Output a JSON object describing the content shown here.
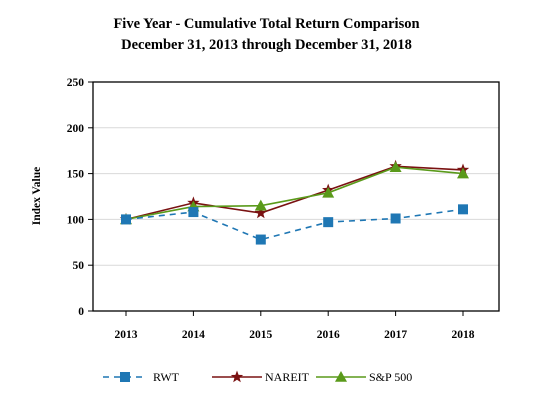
{
  "chart_data": {
    "type": "line",
    "title": "Five Year - Cumulative Total Return Comparison",
    "subtitle": "December 31, 2013 through December 31, 2018",
    "xlabel": "",
    "ylabel": "Index Value",
    "ylim": [
      0,
      250
    ],
    "y_ticks": [
      0,
      50,
      100,
      150,
      200,
      250
    ],
    "categories": [
      "2013",
      "2014",
      "2015",
      "2016",
      "2017",
      "2018"
    ],
    "grid": "horizontal",
    "legend_position": "bottom",
    "series": [
      {
        "name": "RWT",
        "values": [
          100,
          108,
          78,
          97,
          101,
          111
        ],
        "color": "#1f77b4",
        "marker": "square",
        "dash": true
      },
      {
        "name": "NAREIT",
        "values": [
          100,
          118,
          107,
          132,
          158,
          154
        ],
        "color": "#7a1212",
        "marker": "star",
        "dash": false
      },
      {
        "name": "S&P 500",
        "values": [
          100,
          114,
          115,
          129,
          157,
          150
        ],
        "color": "#5a9a1a",
        "marker": "triangle",
        "dash": false
      }
    ]
  }
}
